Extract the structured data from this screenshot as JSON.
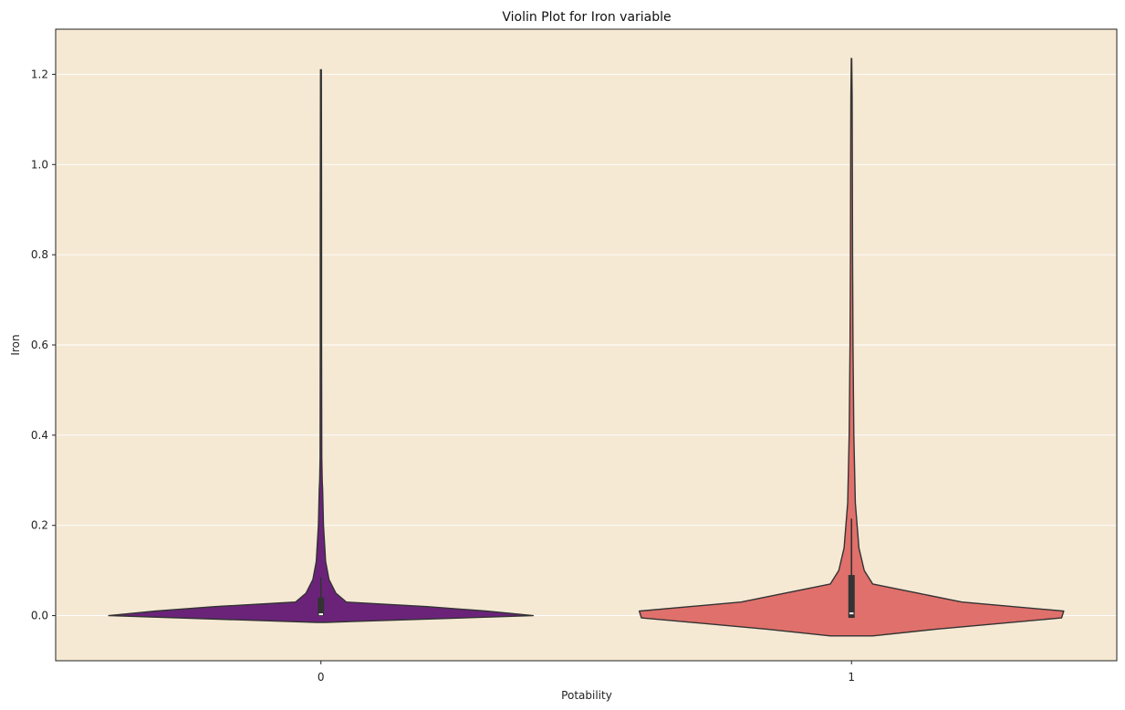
{
  "chart_data": {
    "type": "violin",
    "title": "Violin Plot for Iron variable",
    "xlabel": "Potability",
    "ylabel": "Iron",
    "categories": [
      "0",
      "1"
    ],
    "ylim": [
      -0.1,
      1.3
    ],
    "yticks": [
      0.0,
      0.2,
      0.4,
      0.6,
      0.8,
      1.0,
      1.2
    ],
    "ytick_labels": [
      "0.0",
      "0.2",
      "0.4",
      "0.6",
      "0.8",
      "1.0",
      "1.2"
    ],
    "grid": "y",
    "background_color": "#f5e9d4",
    "series": [
      {
        "category": "0",
        "color": "#6b237a",
        "profile": [
          [
            -0.015,
            0.02
          ],
          [
            0.0,
            1.0
          ],
          [
            0.01,
            0.78
          ],
          [
            0.02,
            0.5
          ],
          [
            0.03,
            0.12
          ],
          [
            0.05,
            0.07
          ],
          [
            0.08,
            0.038
          ],
          [
            0.12,
            0.022
          ],
          [
            0.2,
            0.012
          ],
          [
            0.28,
            0.008
          ],
          [
            0.3,
            0.006
          ],
          [
            0.35,
            0.004
          ],
          [
            0.6,
            0.003
          ],
          [
            0.9,
            0.003
          ],
          [
            1.21,
            0.002
          ]
        ],
        "box": {
          "q1": 0.0,
          "median": 0.003,
          "q3": 0.04,
          "whisker_low": 0.0,
          "whisker_high": 0.085
        }
      },
      {
        "category": "1",
        "color": "#e0706b",
        "profile": [
          [
            -0.045,
            0.1
          ],
          [
            -0.03,
            0.4
          ],
          [
            -0.005,
            0.99
          ],
          [
            0.01,
            1.0
          ],
          [
            0.03,
            0.52
          ],
          [
            0.05,
            0.31
          ],
          [
            0.07,
            0.1
          ],
          [
            0.1,
            0.06
          ],
          [
            0.15,
            0.035
          ],
          [
            0.25,
            0.018
          ],
          [
            0.4,
            0.011
          ],
          [
            0.6,
            0.007
          ],
          [
            0.8,
            0.005
          ],
          [
            1.0,
            0.004
          ],
          [
            1.15,
            0.003
          ],
          [
            1.235,
            0.001
          ]
        ],
        "box": {
          "q1": -0.005,
          "median": 0.005,
          "q3": 0.09,
          "whisker_low": -0.005,
          "whisker_high": 0.215
        }
      }
    ]
  }
}
